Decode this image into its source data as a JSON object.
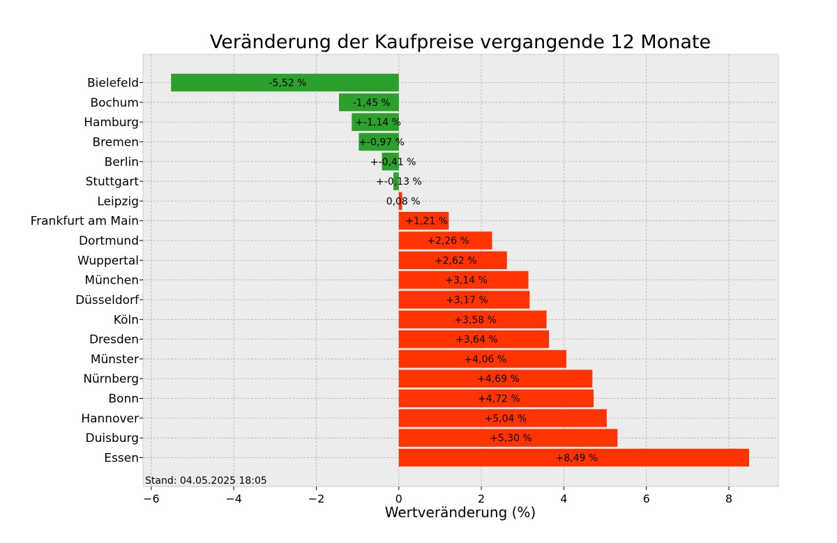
{
  "chart_data": {
    "type": "bar",
    "orientation": "horizontal",
    "title": "Veränderung der Kaufpreise vergangende 12 Monate",
    "xlabel": "Wertveränderung (%)",
    "ylabel": "",
    "xlim": [
      -6.2,
      9.2
    ],
    "xticks": [
      -6,
      -4,
      -2,
      0,
      2,
      4,
      6,
      8
    ],
    "xtick_labels": [
      "−6",
      "−4",
      "−2",
      "0",
      "2",
      "4",
      "6",
      "8"
    ],
    "grid": true,
    "footnote": "Stand: 04.05.2025 18:05",
    "colors": {
      "negative": "#2ca02c",
      "positive": "#ff3300",
      "background": "#ececec"
    },
    "categories": [
      "Bielefeld",
      "Bochum",
      "Hamburg",
      "Bremen",
      "Berlin",
      "Stuttgart",
      "Leipzig",
      "Frankfurt am Main",
      "Dortmund",
      "Wuppertal",
      "München",
      "Düsseldorf",
      "Köln",
      "Dresden",
      "Münster",
      "Nürnberg",
      "Bonn",
      "Hannover",
      "Duisburg",
      "Essen"
    ],
    "values": [
      -5.52,
      -1.45,
      -1.14,
      -0.97,
      -0.41,
      -0.13,
      0.08,
      1.21,
      2.26,
      2.62,
      3.14,
      3.17,
      3.58,
      3.64,
      4.06,
      4.69,
      4.72,
      5.04,
      5.3,
      8.49
    ],
    "value_labels": [
      "-5,52 %",
      "-1,45 %",
      "+-1,14 %",
      "+-0,97 %",
      "+-0,41 %",
      "+-0,13 %",
      "0,08 %",
      "+1,21 %",
      "+2,26 %",
      "+2,62 %",
      "+3,14 %",
      "+3,17 %",
      "+3,58 %",
      "+3,64 %",
      "+4,06 %",
      "+4,69 %",
      "+4,72 %",
      "+5,04 %",
      "+5,30 %",
      "+8,49 %"
    ]
  }
}
